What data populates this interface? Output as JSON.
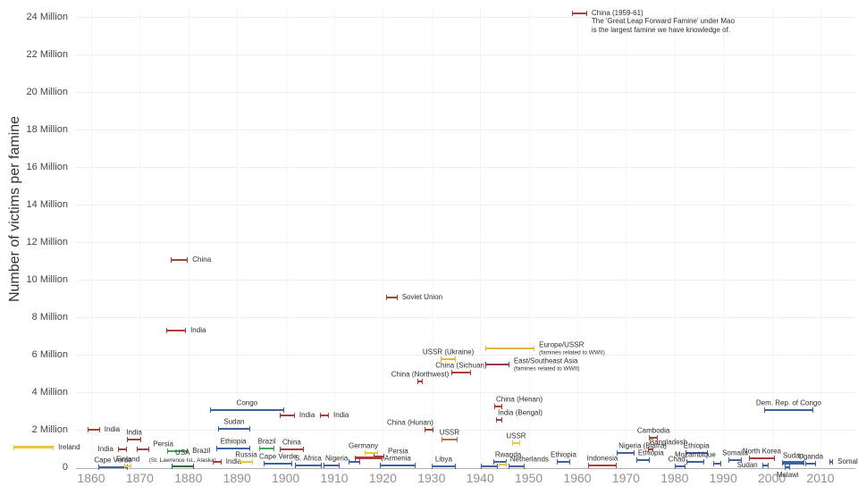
{
  "chart_data": {
    "type": "scatter",
    "title": "",
    "xlabel": "",
    "ylabel": "Number of victims per famine",
    "legend": "none",
    "grid": "faint horizontal and vertical gridlines",
    "x_axis": {
      "min": 1844,
      "max": 2013,
      "ticks": [
        {
          "v": 1860,
          "label": "1860"
        },
        {
          "v": 1870,
          "label": "1870"
        },
        {
          "v": 1880,
          "label": "1880"
        },
        {
          "v": 1890,
          "label": "1890"
        },
        {
          "v": 1900,
          "label": "1900"
        },
        {
          "v": 1910,
          "label": "1910"
        },
        {
          "v": 1920,
          "label": "1920"
        },
        {
          "v": 1930,
          "label": "1930"
        },
        {
          "v": 1940,
          "label": "1940"
        },
        {
          "v": 1950,
          "label": "1950"
        },
        {
          "v": 1960,
          "label": "1960"
        },
        {
          "v": 1970,
          "label": "1970"
        },
        {
          "v": 1980,
          "label": "1980"
        },
        {
          "v": 1990,
          "label": "1990"
        },
        {
          "v": 2000,
          "label": "2000"
        },
        {
          "v": 2010,
          "label": "2010"
        }
      ]
    },
    "y_axis": {
      "min": 0,
      "max": 24.5,
      "unit": "Million victims",
      "ticks": [
        {
          "v": 0,
          "label": "0"
        },
        {
          "v": 2,
          "label": "2 Million"
        },
        {
          "v": 4,
          "label": "4 Million"
        },
        {
          "v": 6,
          "label": "6 Million"
        },
        {
          "v": 8,
          "label": "8 Million"
        },
        {
          "v": 10,
          "label": "10 Million"
        },
        {
          "v": 12,
          "label": "12 Million"
        },
        {
          "v": 14,
          "label": "14 Million"
        },
        {
          "v": 16,
          "label": "16 Million"
        },
        {
          "v": 18,
          "label": "18 Million"
        },
        {
          "v": 20,
          "label": "20 Million"
        },
        {
          "v": 22,
          "label": "22 Million"
        },
        {
          "v": 24,
          "label": "24 Million"
        }
      ]
    },
    "colors": {
      "red": "#ab3d36",
      "blue": "#3c63a0",
      "yellow": "#e6c93f",
      "gold": "#e4b83b",
      "green": "#46a35e",
      "darkgreen": "#2f6b38",
      "brown": "#8f4a31",
      "tan": "#b5743a",
      "maroon": "#97394a",
      "axis": "#b0b0b0",
      "grid": "#efefef",
      "gridv": "#f5f5f5",
      "label_text": "#2d2d2d",
      "tick_text": "#444444",
      "x_tick_text": "#919191"
    },
    "famines": [
      {
        "label": "Ireland",
        "start": 1844,
        "end": 1852.3,
        "value": 1.05,
        "color": "yellow",
        "pos": "right",
        "lw": 3
      },
      {
        "label": "India",
        "start": 1859.3,
        "end": 1861.8,
        "value": 2.0,
        "color": "red",
        "pos": "right"
      },
      {
        "label": "Cape Verde",
        "start": 1861.5,
        "end": 1867.5,
        "value": 0.02,
        "color": "blue",
        "pos": "above"
      },
      {
        "label": "India",
        "start": 1865.5,
        "end": 1867.4,
        "value": 0.95,
        "color": "red",
        "pos": "left"
      },
      {
        "label": "Finland",
        "start": 1866.8,
        "end": 1868.3,
        "value": 0.07,
        "color": "yellow",
        "pos": "above"
      },
      {
        "label": "India",
        "start": 1867.4,
        "end": 1870.3,
        "value": 1.48,
        "color": "red",
        "pos": "above"
      },
      {
        "label": "Persia",
        "start": 1869.4,
        "end": 1872,
        "value": 0.95,
        "color": "red",
        "pos": "right-up"
      },
      {
        "label": "Brazil",
        "start": 1875.6,
        "end": 1879.9,
        "value": 0.86,
        "color": "green",
        "pos": "right"
      },
      {
        "label": "USA",
        "sub": "(St. Lawrence Isl., Alaska)",
        "start": 1876.5,
        "end": 1881.1,
        "value": 0.04,
        "color": "darkgreen",
        "pos": "above"
      },
      {
        "label": "India",
        "start": 1875.4,
        "end": 1879.5,
        "value": 7.3,
        "color": "red",
        "pos": "right"
      },
      {
        "label": "China",
        "start": 1876.4,
        "end": 1879.9,
        "value": 11.05,
        "color": "red",
        "pos": "right"
      },
      {
        "label": "Congo",
        "start": 1884.4,
        "end": 1899.7,
        "value": 3.05,
        "color": "blue",
        "pos": "above"
      },
      {
        "label": "Sudan",
        "start": 1886.1,
        "end": 1892.7,
        "value": 2.05,
        "color": "blue",
        "pos": "above"
      },
      {
        "label": "Ethiopia",
        "start": 1885.8,
        "end": 1892.7,
        "value": 1.0,
        "color": "blue",
        "pos": "above"
      },
      {
        "label": "India",
        "start": 1885,
        "end": 1886.8,
        "value": 0.29,
        "color": "red",
        "pos": "right"
      },
      {
        "label": "Russia",
        "start": 1890.5,
        "end": 1893.3,
        "value": 0.29,
        "color": "yellow",
        "pos": "above"
      },
      {
        "label": "Brazil",
        "start": 1894.6,
        "end": 1897.7,
        "value": 1.0,
        "color": "green",
        "pos": "above"
      },
      {
        "label": "China",
        "start": 1898.8,
        "end": 1903.7,
        "value": 0.95,
        "color": "red",
        "pos": "above"
      },
      {
        "label": "India",
        "start": 1898.8,
        "end": 1901.9,
        "value": 2.75,
        "color": "red",
        "pos": "right"
      },
      {
        "label": "India",
        "start": 1907.1,
        "end": 1908.9,
        "value": 2.75,
        "color": "red",
        "pos": "right"
      },
      {
        "label": "Cape Verde",
        "start": 1895.5,
        "end": 1901.4,
        "value": 0.19,
        "color": "blue",
        "pos": "above"
      },
      {
        "label": "S. Africa",
        "start": 1901.9,
        "end": 1907.4,
        "value": 0.1,
        "color": "blue",
        "pos": "above-left"
      },
      {
        "label": "Nigeria",
        "start": 1907.8,
        "end": 1911.1,
        "value": 0.1,
        "color": "blue",
        "pos": "above-right"
      },
      {
        "label": "",
        "start": 1912.9,
        "end": 1915.3,
        "value": 0.29,
        "color": "blue",
        "pos": "above"
      },
      {
        "label": "",
        "start": 1914.2,
        "end": 1919.9,
        "value": 0.48,
        "color": "red",
        "pos": "above",
        "lw": 3
      },
      {
        "label": "Germany",
        "start": 1916.2,
        "end": 1919,
        "value": 0.76,
        "color": "yellow",
        "pos": "above-left"
      },
      {
        "label": "Persia",
        "start": 1918.1,
        "end": 1920.3,
        "value": 0.57,
        "color": "red",
        "pos": "right-up"
      },
      {
        "label": "Armenia",
        "start": 1919.4,
        "end": 1926.7,
        "value": 0.1,
        "color": "blue",
        "pos": "above"
      },
      {
        "label": "Soviet Union",
        "start": 1920.7,
        "end": 1923,
        "value": 9.05,
        "color": "brown",
        "pos": "right"
      },
      {
        "label": "China (Hunan)",
        "start": 1928.6,
        "end": 1930.4,
        "value": 2.0,
        "color": "red",
        "pos": "above-left"
      },
      {
        "label": "China (Northwest)",
        "start": 1927.1,
        "end": 1928.2,
        "value": 4.57,
        "color": "red",
        "pos": "above"
      },
      {
        "label": "USSR (Ukraine)",
        "start": 1931.9,
        "end": 1935,
        "value": 5.76,
        "color": "gold",
        "pos": "above"
      },
      {
        "label": "China (Sichuan)",
        "start": 1934.1,
        "end": 1938.1,
        "value": 5.05,
        "color": "red",
        "pos": "above"
      },
      {
        "label": "USSR",
        "start": 1932,
        "end": 1935.4,
        "value": 1.48,
        "color": "tan",
        "pos": "above"
      },
      {
        "label": "Libya",
        "start": 1930,
        "end": 1935,
        "value": 0.05,
        "color": "blue",
        "pos": "above"
      },
      {
        "label": "Europe/USSR",
        "sub": "(famines related to WWII)",
        "start": 1941.1,
        "end": 1951.2,
        "value": 6.33,
        "color": "gold",
        "pos": "right"
      },
      {
        "label": "East/Southeast Asia",
        "sub": "(famines related to WWII)",
        "start": 1941.1,
        "end": 1946,
        "value": 5.48,
        "color": "maroon",
        "pos": "right"
      },
      {
        "label": "China (Henan)",
        "start": 1942.9,
        "end": 1944.6,
        "value": 3.24,
        "color": "red",
        "pos": "above-right"
      },
      {
        "label": "India (Bengal)",
        "start": 1943.3,
        "end": 1944.6,
        "value": 2.52,
        "color": "red",
        "pos": "above-right"
      },
      {
        "label": "USSR",
        "start": 1946.6,
        "end": 1948.2,
        "value": 1.29,
        "color": "yellow",
        "pos": "above"
      },
      {
        "label": "Rwanda",
        "start": 1942.7,
        "end": 1945.5,
        "value": 0.29,
        "color": "blue",
        "pos": "above-right"
      },
      {
        "label": "Netherlands",
        "start": 1945.8,
        "end": 1949.2,
        "value": 0.05,
        "color": "blue",
        "pos": "above-right"
      },
      {
        "label": "",
        "start": 1940.1,
        "end": 1943.6,
        "value": 0.05,
        "color": "blue",
        "pos": "above"
      },
      {
        "label": "",
        "start": 1943.8,
        "end": 1945.5,
        "value": 0.14,
        "color": "yellow",
        "pos": "above"
      },
      {
        "label": "China (1959-61)",
        "start": 1958.9,
        "end": 1962,
        "value": 24.2,
        "color": "red",
        "pos": "right",
        "note1": "The 'Great Leap Forward Famine' under Mao",
        "note2": "is the largest famine we have knowledge of."
      },
      {
        "label": "Ethiopia",
        "start": 1955.8,
        "end": 1958.5,
        "value": 0.29,
        "color": "blue",
        "pos": "above"
      },
      {
        "label": "Indonesia",
        "start": 1962.2,
        "end": 1968.1,
        "value": 0.08,
        "color": "red",
        "pos": "above"
      },
      {
        "label": "Nigeria (Biafra)",
        "start": 1968.1,
        "end": 1971.8,
        "value": 0.76,
        "color": "blue",
        "pos": "above-right"
      },
      {
        "label": "Ethiopia",
        "start": 1972.1,
        "end": 1974.9,
        "value": 0.38,
        "color": "blue",
        "pos": "above-right"
      },
      {
        "label": "Bangladesh",
        "start": 1974.5,
        "end": 1975.6,
        "value": 0.95,
        "color": "red",
        "pos": "above-right"
      },
      {
        "label": "Cambodia",
        "start": 1974.7,
        "end": 1976.6,
        "value": 1.57,
        "color": "red",
        "pos": "above"
      },
      {
        "label": "Chad",
        "start": 1980,
        "end": 1982.2,
        "value": 0.03,
        "color": "blue",
        "pos": "above-left"
      },
      {
        "label": "Ethiopia",
        "start": 1982.2,
        "end": 1986.8,
        "value": 0.76,
        "color": "blue",
        "pos": "above"
      },
      {
        "label": "Mozambique",
        "start": 1982.4,
        "end": 1986.1,
        "value": 0.29,
        "color": "blue",
        "pos": "above"
      },
      {
        "label": "",
        "start": 1987.9,
        "end": 1989.6,
        "value": 0.19,
        "color": "blue",
        "pos": "above"
      },
      {
        "label": "Somalia",
        "start": 1991.1,
        "end": 1993.8,
        "value": 0.38,
        "color": "blue",
        "pos": "above"
      },
      {
        "label": "North Korea",
        "start": 1995.3,
        "end": 2000.6,
        "value": 0.48,
        "color": "red",
        "pos": "above"
      },
      {
        "label": "Sudan",
        "start": 1998,
        "end": 1999.3,
        "value": 0.08,
        "color": "blue",
        "pos": "left"
      },
      {
        "label": "Sudan",
        "start": 2002.1,
        "end": 2006.7,
        "value": 0.22,
        "color": "blue",
        "pos": "above",
        "lw": 4
      },
      {
        "label": "Malawi",
        "start": 2002.7,
        "end": 2003.8,
        "value": 0.02,
        "color": "blue",
        "pos": "below"
      },
      {
        "label": "Uganda",
        "start": 2006.9,
        "end": 2009.1,
        "value": 0.19,
        "color": "blue",
        "pos": "above"
      },
      {
        "label": "Somalia",
        "start": 2011.8,
        "end": 2012.6,
        "value": 0.29,
        "color": "blue",
        "pos": "right"
      },
      {
        "label": "Dem. Rep. of Congo",
        "start": 1998.4,
        "end": 2008.5,
        "value": 3.05,
        "color": "blue",
        "pos": "above"
      }
    ]
  }
}
